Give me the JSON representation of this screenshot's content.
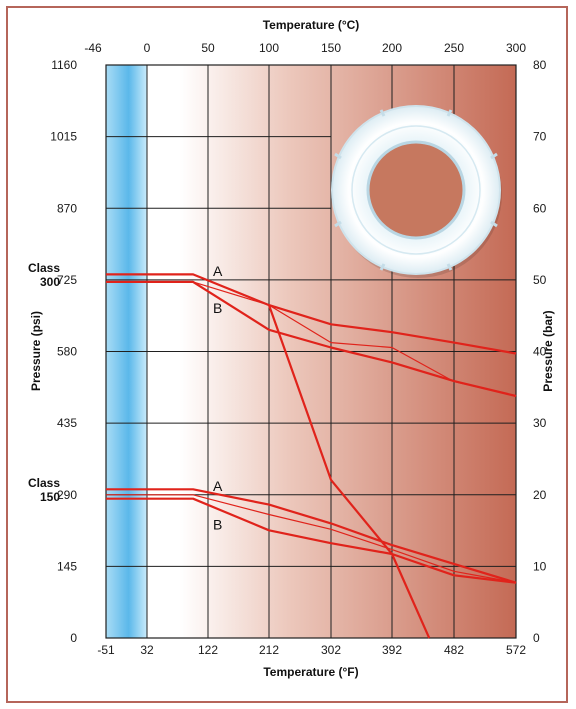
{
  "chart_data": {
    "type": "line",
    "x_top_label": "Temperature (°C)",
    "x_bottom_label": "Temperature (°F)",
    "y_left_label": "Pressure (psi)",
    "y_right_label": "Pressure (bar)",
    "x_bottom_ticks": [
      "-51",
      "32",
      "122",
      "212",
      "302",
      "392",
      "482",
      "572"
    ],
    "x_top_ticks": [
      "-46",
      "0",
      "50",
      "100",
      "150",
      "200",
      "250",
      "300"
    ],
    "y_left_ticks": [
      "0",
      "145",
      "290",
      "435",
      "580",
      "725",
      "870",
      "1015",
      "1160"
    ],
    "y_right_ticks": [
      "0",
      "10",
      "20",
      "30",
      "40",
      "50",
      "60",
      "70",
      "80"
    ],
    "xlim": [
      -51,
      572
    ],
    "ylim": [
      0,
      1160
    ],
    "class_labels": [
      {
        "text": "Class\n300",
        "y": 725
      },
      {
        "text": "Class\n150",
        "y": 290
      }
    ],
    "curve_labels": [
      {
        "text": "A",
        "x": 122,
        "y": 743
      },
      {
        "text": "B",
        "x": 122,
        "y": 668
      },
      {
        "text": "A",
        "x": 122,
        "y": 308
      },
      {
        "text": "B",
        "x": 122,
        "y": 230
      }
    ],
    "series": [
      {
        "values": [
          [
            -51,
            736
          ],
          [
            100,
            736
          ],
          [
            212,
            674
          ],
          [
            302,
            635
          ],
          [
            392,
            619
          ],
          [
            482,
            598
          ],
          [
            572,
            576
          ]
        ]
      },
      {
        "values": [
          [
            -51,
            721
          ],
          [
            100,
            721
          ],
          [
            212,
            624
          ],
          [
            302,
            588
          ],
          [
            392,
            558
          ],
          [
            482,
            520
          ],
          [
            572,
            490
          ]
        ]
      },
      {
        "values": [
          [
            -51,
            721
          ],
          [
            100,
            721
          ],
          [
            212,
            674
          ],
          [
            302,
            598
          ],
          [
            392,
            588
          ],
          [
            482,
            519
          ],
          [
            572,
            490
          ]
        ]
      },
      {
        "values": [
          [
            212,
            674
          ],
          [
            302,
            320
          ],
          [
            392,
            170
          ],
          [
            446,
            0
          ]
        ]
      },
      {
        "values": [
          [
            -51,
            301
          ],
          [
            100,
            301
          ],
          [
            212,
            270
          ],
          [
            302,
            232
          ],
          [
            392,
            188
          ],
          [
            482,
            150
          ],
          [
            572,
            112
          ]
        ]
      },
      {
        "values": [
          [
            -51,
            282
          ],
          [
            100,
            282
          ],
          [
            212,
            218
          ],
          [
            302,
            192
          ],
          [
            392,
            170
          ],
          [
            482,
            127
          ],
          [
            572,
            112
          ]
        ]
      },
      {
        "values": [
          [
            -51,
            290
          ],
          [
            100,
            290
          ],
          [
            212,
            250
          ],
          [
            302,
            220
          ],
          [
            392,
            179
          ],
          [
            482,
            135
          ],
          [
            572,
            112
          ]
        ]
      }
    ],
    "legend": "none"
  },
  "colors": {
    "curve": "#e0231b",
    "frame": "#b5655a",
    "cold_band": "#56b6e8",
    "warm_band_end": "#c66d58"
  },
  "image": {
    "icon": "ptfe-seat-ring-icon"
  }
}
